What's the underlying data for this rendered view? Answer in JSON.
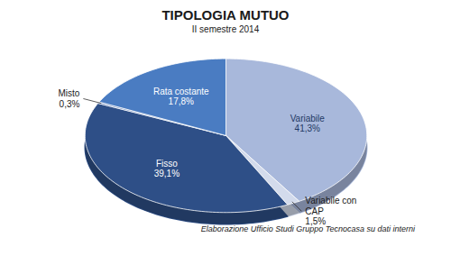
{
  "chart_data": {
    "type": "pie",
    "title": "TIPOLOGIA MUTUO",
    "subtitle": "II semestre 2014",
    "caption": "Elaborazione Ufficio Studi Gruppo Tecnocasa su dati interni",
    "categories": [
      "Variabile",
      "Variabile con CAP",
      "Fisso",
      "Misto",
      "Rata costante"
    ],
    "values": [
      41.3,
      1.5,
      39.1,
      0.3,
      17.8
    ],
    "value_labels": [
      "41,3%",
      "1,5%",
      "39,1%",
      "0,3%",
      "17,8%"
    ],
    "colors": [
      "#a8b8db",
      "#d3dbec",
      "#2e4f87",
      "#5d7db8",
      "#4a7cc2"
    ],
    "data_labels": true
  }
}
